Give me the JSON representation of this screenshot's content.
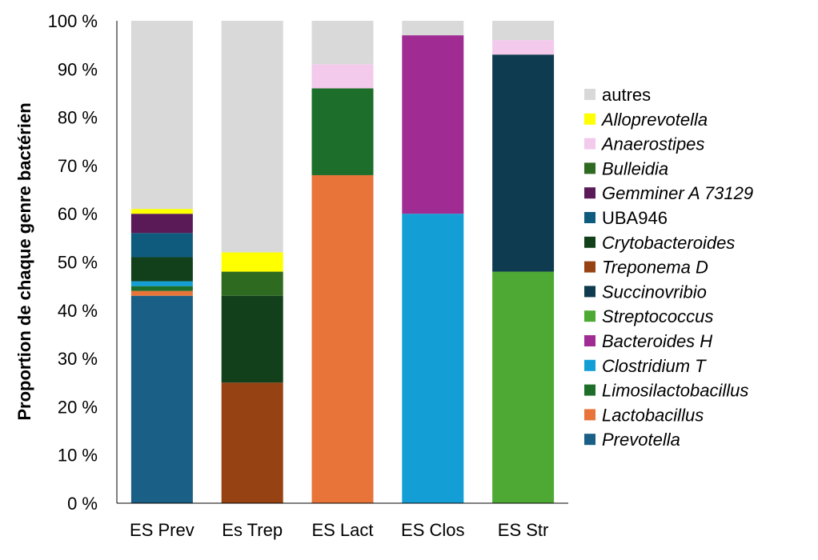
{
  "chart_data": {
    "type": "bar",
    "stacked": true,
    "title": "",
    "xlabel": "",
    "ylabel": "Proportion de chaque genre bactérien",
    "ylim": [
      0,
      100
    ],
    "y_ticks": [
      "0 %",
      "10 %",
      "20 %",
      "30 %",
      "40 %",
      "50 %",
      "60 %",
      "70 %",
      "80 %",
      "90 %",
      "100 %"
    ],
    "grid": false,
    "legend_position": "right",
    "categories": [
      "ES Prev",
      "Es Trep",
      "ES Lact",
      "ES Clos",
      "ES Str"
    ],
    "series": [
      {
        "name": "Prevotella",
        "italic": true,
        "color": "#1a5f85",
        "values": [
          43,
          0,
          0,
          0,
          0
        ]
      },
      {
        "name": "Lactobacillus",
        "italic": true,
        "color": "#e8743a",
        "values": [
          1,
          0,
          68,
          0,
          0
        ]
      },
      {
        "name": "Limosilactobacillus",
        "italic": true,
        "color": "#1d6e2a",
        "values": [
          1,
          0,
          18,
          0,
          0
        ]
      },
      {
        "name": "Clostridium T",
        "italic": true,
        "color": "#139fd6",
        "values": [
          1,
          0,
          0,
          60,
          0
        ]
      },
      {
        "name": "Bacteroides H",
        "italic": true,
        "color": "#a02c93",
        "values": [
          0,
          0,
          0,
          37,
          0
        ]
      },
      {
        "name": "Streptococcus",
        "italic": true,
        "color": "#4ea934",
        "values": [
          0,
          0,
          0,
          0,
          48
        ]
      },
      {
        "name": "Succinovribio",
        "italic": true,
        "color": "#0f3b50",
        "values": [
          0,
          0,
          0,
          0,
          45
        ]
      },
      {
        "name": "Treponema D",
        "italic": true,
        "color": "#974212",
        "values": [
          0,
          25,
          0,
          0,
          0
        ]
      },
      {
        "name": "Crytobacteroides",
        "italic": true,
        "color": "#12401a",
        "values": [
          5,
          18,
          0,
          0,
          0
        ]
      },
      {
        "name": "UBA946",
        "italic": false,
        "color": "#0f5b7e",
        "values": [
          5,
          0,
          0,
          0,
          0
        ]
      },
      {
        "name": "Gemminer A 73129",
        "italic": true,
        "color": "#5a1a58",
        "values": [
          4,
          0,
          0,
          0,
          0
        ]
      },
      {
        "name": "Bulleidia",
        "italic": true,
        "color": "#2e6a20",
        "values": [
          0,
          5,
          0,
          0,
          0
        ]
      },
      {
        "name": "Anaerostipes",
        "italic": true,
        "color": "#f3c9ec",
        "values": [
          0,
          0,
          5,
          0,
          3
        ]
      },
      {
        "name": "Alloprevotella",
        "italic": true,
        "color": "#ffff00",
        "values": [
          1,
          4,
          0,
          0,
          0
        ]
      },
      {
        "name": "autres",
        "italic": false,
        "color": "#d9d9d9",
        "values": [
          39,
          48,
          9,
          3,
          4
        ]
      }
    ]
  }
}
